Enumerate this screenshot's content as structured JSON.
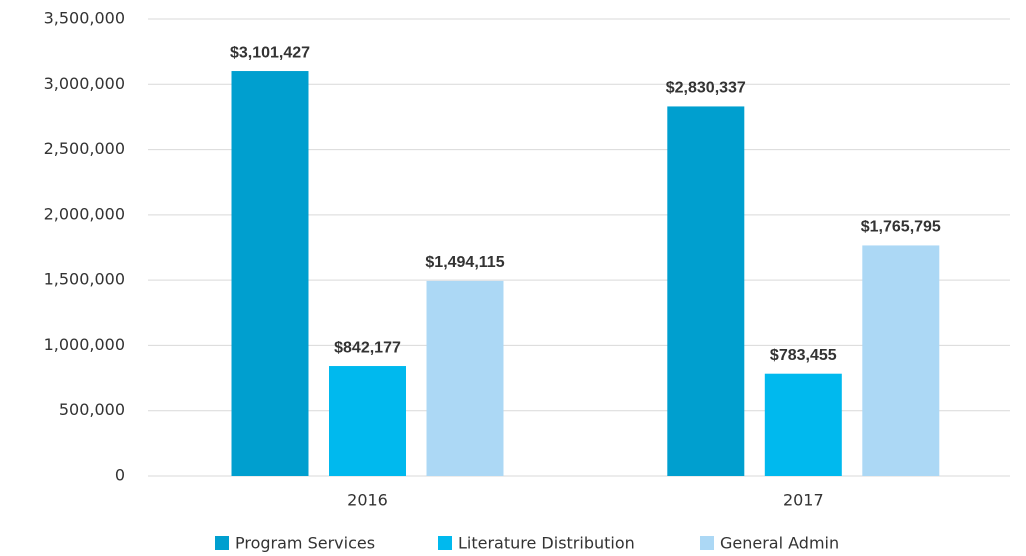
{
  "chart_data": {
    "type": "bar",
    "categories": [
      "2016",
      "2017"
    ],
    "series": [
      {
        "name": "Program Services",
        "color": "#009fcf",
        "values": [
          3101427,
          2830337
        ],
        "value_labels": [
          "$3,101,427",
          "$2,830,337"
        ]
      },
      {
        "name": "Literature Distribution",
        "color": "#00b9ee",
        "values": [
          842177,
          783455
        ],
        "value_labels": [
          "$842,177",
          "$783,455"
        ]
      },
      {
        "name": "General Admin",
        "color": "#acd8f5",
        "values": [
          1494115,
          1765795
        ],
        "value_labels": [
          "$1,494,115",
          "$1,765,795"
        ]
      }
    ],
    "ylim": [
      0,
      3500000
    ],
    "yticks": [
      0,
      {
        "value": 500000,
        "label": "500,000"
      },
      {
        "value": 1000000,
        "label": "1,000,000"
      },
      {
        "value": 1500000,
        "label": "1,500,000"
      },
      {
        "value": 2000000,
        "label": "2,000,000"
      },
      {
        "value": 2500000,
        "label": "2,500,000"
      },
      {
        "value": 3000000,
        "label": "3,000,000"
      },
      {
        "value": 3500000,
        "label": "3,500,000"
      }
    ],
    "grid": true,
    "legend": "bottom"
  }
}
